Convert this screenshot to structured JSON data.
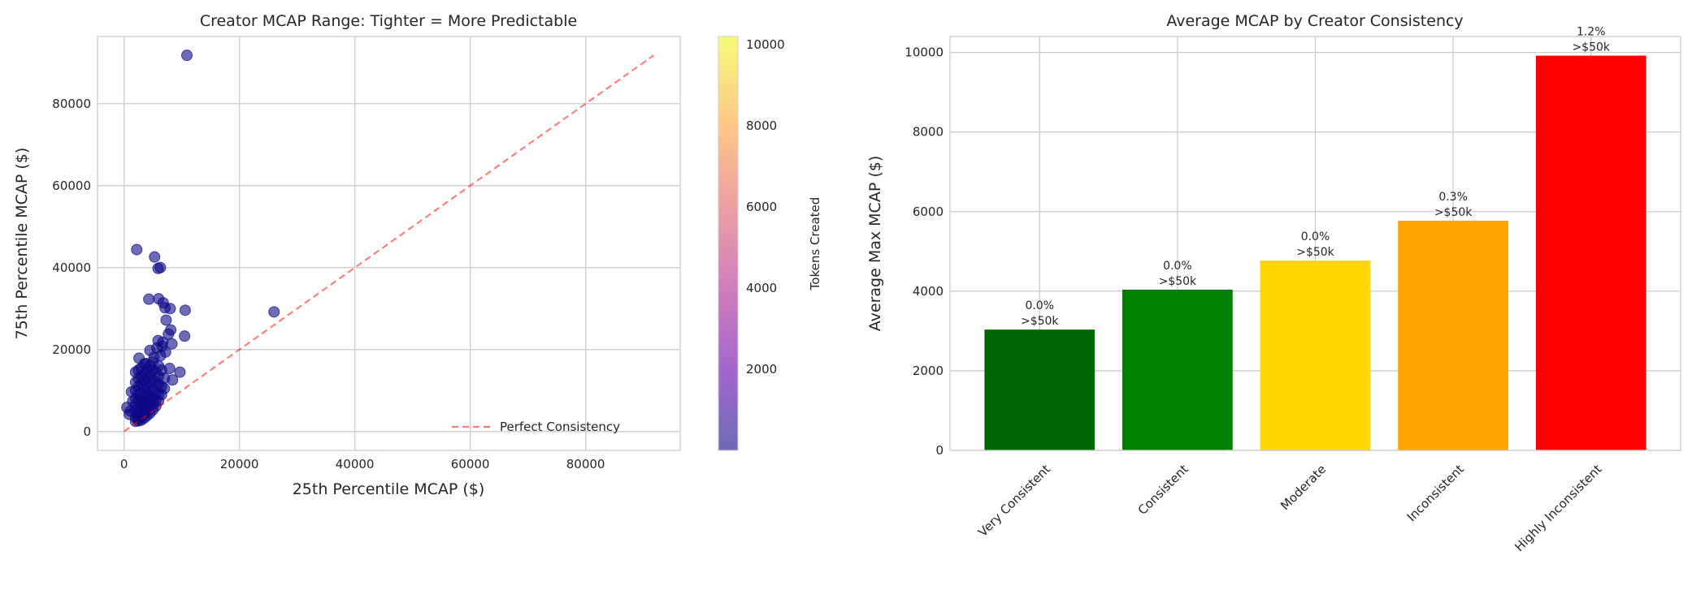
{
  "chart_data": [
    {
      "type": "scatter",
      "title": "Creator MCAP Range: Tighter = More Predictable",
      "xlabel": "25th Percentile MCAP ($)",
      "ylabel": "75th Percentile MCAP ($)",
      "xlim": [
        -4590,
        96390
      ],
      "ylim": [
        -4590,
        96390
      ],
      "xticks": [
        0,
        20000,
        40000,
        60000,
        80000
      ],
      "yticks": [
        0,
        20000,
        40000,
        60000,
        80000
      ],
      "grid": true,
      "point_color": "#0d0887",
      "point_alpha": 0.6,
      "colorbar": {
        "label": "Tokens Created",
        "colormap": "plasma",
        "range": [
          1,
          10200
        ],
        "ticks": [
          2000,
          4000,
          6000,
          8000,
          10000
        ]
      },
      "reference_line": {
        "name": "Perfect Consistency",
        "from": [
          0,
          0
        ],
        "to": [
          91800,
          91800
        ],
        "color": "#ff0000",
        "alpha": 0.5,
        "style": "dashed"
      },
      "legend": {
        "placement": "lower-right",
        "entries": [
          "Perfect Consistency"
        ]
      },
      "points": [
        [
          10900,
          91800
        ],
        [
          2200,
          44400
        ],
        [
          5300,
          42600
        ],
        [
          5900,
          39800
        ],
        [
          6300,
          40000
        ],
        [
          4300,
          32300
        ],
        [
          6000,
          32400
        ],
        [
          6800,
          31400
        ],
        [
          7100,
          30200
        ],
        [
          10600,
          29600
        ],
        [
          26000,
          29200
        ],
        [
          8000,
          30000
        ],
        [
          7300,
          27200
        ],
        [
          8100,
          24800
        ],
        [
          7700,
          23800
        ],
        [
          10500,
          23300
        ],
        [
          5900,
          22200
        ],
        [
          6700,
          21800
        ],
        [
          8300,
          21400
        ],
        [
          5700,
          20400
        ],
        [
          6600,
          20800
        ],
        [
          4500,
          19800
        ],
        [
          7200,
          19400
        ],
        [
          2600,
          17900
        ],
        [
          6300,
          18500
        ],
        [
          9700,
          14500
        ],
        [
          8400,
          12600
        ],
        [
          7900,
          15400
        ],
        [
          5200,
          18100
        ],
        [
          3800,
          16600
        ],
        [
          500,
          5900
        ],
        [
          900,
          4200
        ],
        [
          1300,
          9700
        ],
        [
          1500,
          7400
        ],
        [
          1100,
          5000
        ],
        [
          2000,
          2500
        ],
        [
          2000,
          3500
        ],
        [
          2000,
          5000
        ],
        [
          2000,
          6500
        ],
        [
          2000,
          8000
        ],
        [
          2000,
          10000
        ],
        [
          2000,
          12000
        ],
        [
          2000,
          14500
        ],
        [
          2500,
          2600
        ],
        [
          2500,
          3200
        ],
        [
          2500,
          4500
        ],
        [
          2500,
          6000
        ],
        [
          2500,
          7500
        ],
        [
          2500,
          9000
        ],
        [
          2500,
          11000
        ],
        [
          2500,
          13000
        ],
        [
          2500,
          15000
        ],
        [
          3000,
          2800
        ],
        [
          3000,
          3600
        ],
        [
          3000,
          5000
        ],
        [
          3000,
          6500
        ],
        [
          3000,
          8000
        ],
        [
          3000,
          9500
        ],
        [
          3000,
          11500
        ],
        [
          3000,
          13500
        ],
        [
          3000,
          15500
        ],
        [
          3500,
          3300
        ],
        [
          3500,
          4200
        ],
        [
          3500,
          5500
        ],
        [
          3500,
          7000
        ],
        [
          3500,
          8500
        ],
        [
          3500,
          10500
        ],
        [
          3500,
          12500
        ],
        [
          3500,
          14000
        ],
        [
          3500,
          16500
        ],
        [
          4000,
          3900
        ],
        [
          4000,
          4800
        ],
        [
          4000,
          6000
        ],
        [
          4000,
          7500
        ],
        [
          4000,
          9000
        ],
        [
          4000,
          11000
        ],
        [
          4000,
          13000
        ],
        [
          4000,
          15000
        ],
        [
          4500,
          4500
        ],
        [
          4500,
          5500
        ],
        [
          4500,
          7000
        ],
        [
          4500,
          8500
        ],
        [
          4500,
          10000
        ],
        [
          4500,
          12000
        ],
        [
          4500,
          14000
        ],
        [
          4500,
          16000
        ],
        [
          5000,
          5300
        ],
        [
          5000,
          6500
        ],
        [
          5000,
          8000
        ],
        [
          5000,
          10000
        ],
        [
          5000,
          12500
        ],
        [
          5000,
          15000
        ],
        [
          5000,
          17000
        ],
        [
          5500,
          6200
        ],
        [
          5500,
          7500
        ],
        [
          5500,
          9500
        ],
        [
          5500,
          12000
        ],
        [
          5500,
          14500
        ],
        [
          6000,
          7500
        ],
        [
          6000,
          9000
        ],
        [
          6000,
          11500
        ],
        [
          6000,
          13500
        ],
        [
          6000,
          16000
        ],
        [
          6500,
          9000
        ],
        [
          6500,
          11000
        ],
        [
          6500,
          15000
        ],
        [
          7000,
          10500
        ],
        [
          7000,
          13000
        ]
      ]
    },
    {
      "type": "bar",
      "title": "Average MCAP by Creator Consistency",
      "xlabel": "",
      "ylabel": "Average Max MCAP ($)",
      "ylim": [
        0,
        10400
      ],
      "yticks": [
        0,
        2000,
        4000,
        6000,
        8000,
        10000
      ],
      "grid": true,
      "categories": [
        "Very Consistent",
        "Consistent",
        "Moderate",
        "Inconsistent",
        "Highly Inconsistent"
      ],
      "values": [
        3035,
        4038,
        4770,
        5772,
        9919
      ],
      "colors": [
        "#006400",
        "#008000",
        "#ffd700",
        "#ffa500",
        "#ff0000"
      ],
      "data_labels": [
        [
          "0.0%",
          ">$50k"
        ],
        [
          "0.0%",
          ">$50k"
        ],
        [
          "0.0%",
          ">$50k"
        ],
        [
          "0.3%",
          ">$50k"
        ],
        [
          "1.2%",
          ">$50k"
        ]
      ]
    }
  ]
}
